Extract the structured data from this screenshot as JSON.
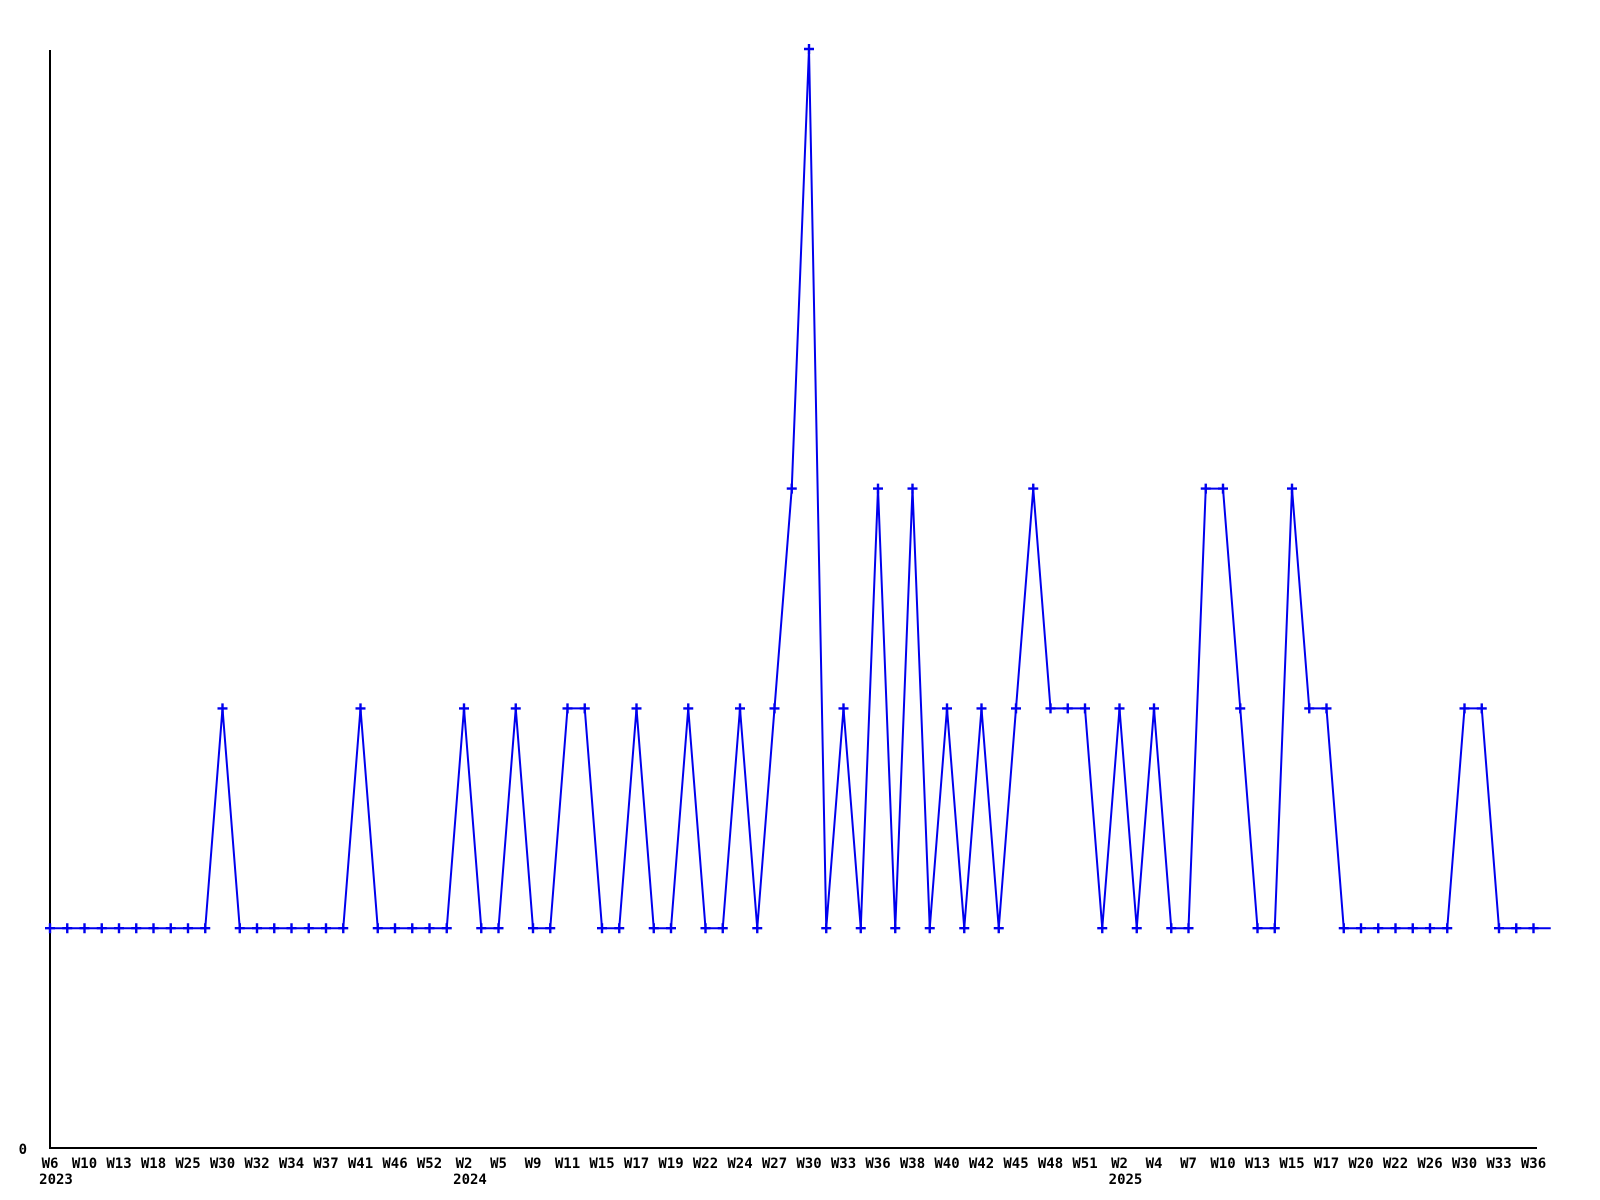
{
  "chart_data": {
    "type": "line",
    "title": "",
    "xlabel": "",
    "ylabel": "",
    "legend": null,
    "grid": false,
    "y_zero_label": "0",
    "ylim": [
      0,
      5.05
    ],
    "line_color": "#0000ee",
    "axis_color": "#000000",
    "marker": "plus",
    "tick_every_n_points": 2,
    "x_tick_labels": [
      "W6",
      "W10",
      "W13",
      "W18",
      "W25",
      "W30",
      "W32",
      "W34",
      "W37",
      "W41",
      "W46",
      "W52",
      "W2",
      "W5",
      "W9",
      "W11",
      "W15",
      "W17",
      "W19",
      "W22",
      "W24",
      "W27",
      "W30",
      "W33",
      "W36",
      "W38",
      "W40",
      "W42",
      "W45",
      "W48",
      "W51",
      "W2",
      "W4",
      "W7",
      "W10",
      "W13",
      "W15",
      "W17",
      "W20",
      "W22",
      "W26",
      "W30",
      "W33",
      "W36"
    ],
    "year_labels": [
      {
        "tick_index": 0,
        "label": "2023"
      },
      {
        "tick_index": 12,
        "label": "2024"
      },
      {
        "tick_index": 31,
        "label": "2025"
      }
    ],
    "values": [
      1,
      1,
      1,
      1,
      1,
      1,
      1,
      1,
      1,
      1,
      2,
      1,
      1,
      1,
      1,
      1,
      1,
      1,
      2,
      1,
      1,
      1,
      1,
      1,
      2,
      1,
      1,
      2,
      1,
      1,
      2,
      2,
      1,
      1,
      2,
      1,
      1,
      2,
      1,
      1,
      2,
      1,
      2,
      3,
      5,
      1,
      2,
      1,
      3,
      1,
      3,
      1,
      2,
      1,
      2,
      1,
      2,
      3,
      2,
      2,
      2,
      1,
      2,
      1,
      2,
      1,
      1,
      3,
      3,
      2,
      1,
      1,
      3,
      2,
      2,
      1,
      1,
      1,
      1,
      1,
      1,
      1,
      2,
      2,
      1,
      1,
      1,
      1
    ],
    "last_point_has_marker": false
  }
}
